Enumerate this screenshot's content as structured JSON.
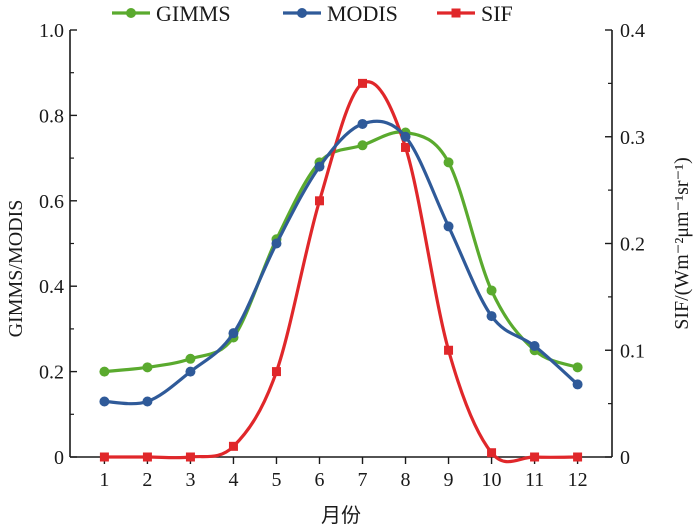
{
  "chart_data": {
    "type": "line",
    "title": "",
    "xlabel": "月份",
    "ylabel_left": "GIMMS/MODIS",
    "ylabel_right": "SIF/(Wm⁻²μm⁻¹sr⁻¹)",
    "categories": [
      "1",
      "2",
      "3",
      "4",
      "5",
      "6",
      "7",
      "8",
      "9",
      "10",
      "11",
      "12"
    ],
    "x": [
      1,
      2,
      3,
      4,
      5,
      6,
      7,
      8,
      9,
      10,
      11,
      12
    ],
    "ylim_left": [
      0,
      1.0
    ],
    "ylim_right": [
      0,
      0.4
    ],
    "yticks_left": [
      "0",
      "0.2",
      "0.4",
      "0.6",
      "0.8",
      "1.0"
    ],
    "yticks_right": [
      "0",
      "0.1",
      "0.2",
      "0.3",
      "0.4"
    ],
    "grid": false,
    "legend_position": "top",
    "series": [
      {
        "name": "GIMMS",
        "axis": "left",
        "color": "#5aaa2e",
        "marker": "circle",
        "values": [
          0.2,
          0.21,
          0.23,
          0.28,
          0.51,
          0.69,
          0.73,
          0.76,
          0.69,
          0.39,
          0.25,
          0.21
        ]
      },
      {
        "name": "MODIS",
        "axis": "left",
        "color": "#2f5a99",
        "marker": "circle",
        "values": [
          0.13,
          0.13,
          0.2,
          0.29,
          0.5,
          0.68,
          0.78,
          0.75,
          0.54,
          0.33,
          0.26,
          0.17
        ]
      },
      {
        "name": "SIF",
        "axis": "right",
        "color": "#e0272a",
        "marker": "square",
        "values": [
          0.0,
          0.0,
          0.0,
          0.01,
          0.08,
          0.24,
          0.35,
          0.29,
          0.1,
          0.004,
          0.0,
          0.0
        ]
      }
    ]
  }
}
